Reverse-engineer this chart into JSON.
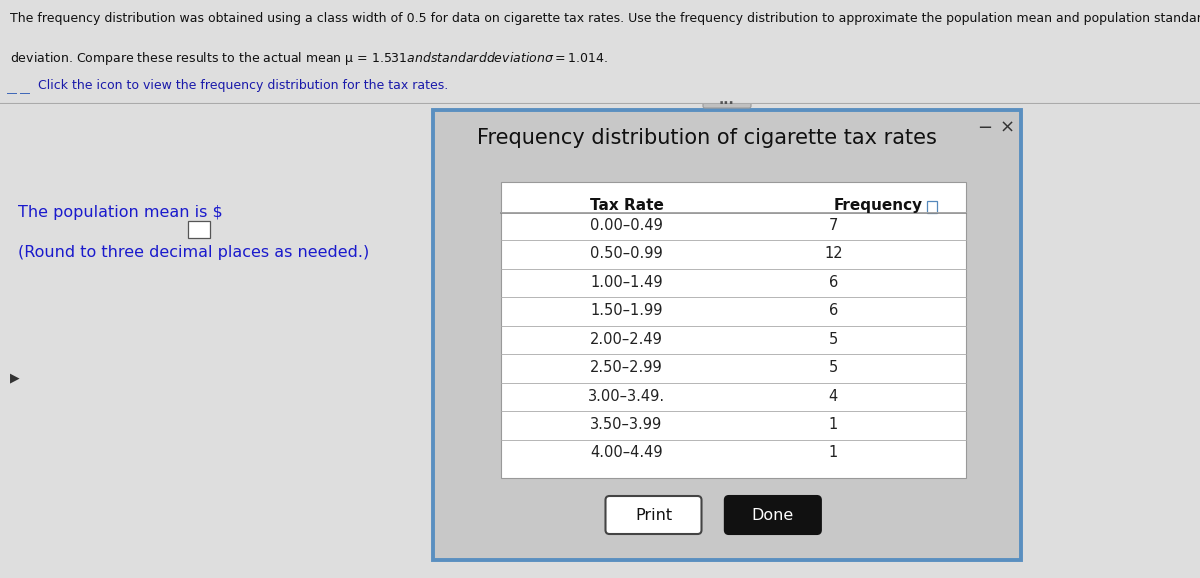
{
  "header_line1": "The frequency distribution was obtained using a class width of 0.5 for data on cigarette tax rates. Use the frequency distribution to approximate the population mean and population standard",
  "header_line2": "deviation. Compare these results to the actual mean μ = $1.531 and standard deviation σ = $1.014.",
  "icon_text": "Click the icon to view the frequency distribution for the tax rates.",
  "left_text_line1": "The population mean is $",
  "left_text_line2": "(Round to three decimal places as needed.)",
  "dialog_title": "Frequency distribution of cigarette tax rates",
  "col_header1": "Tax Rate",
  "col_header2": "Frequency",
  "tax_rates": [
    "0.00–0.49",
    "0.50–0.99",
    "1.00–1.49",
    "1.50–1.99",
    "2.00–2.49",
    "2.50–2.99",
    "3.00–3.49.",
    "3.50–3.99",
    "4.00–4.49"
  ],
  "frequencies": [
    "7",
    "12",
    "6",
    "6",
    "5",
    "5",
    "4",
    "1",
    "1"
  ],
  "print_btn": "Print",
  "done_btn": "Done"
}
